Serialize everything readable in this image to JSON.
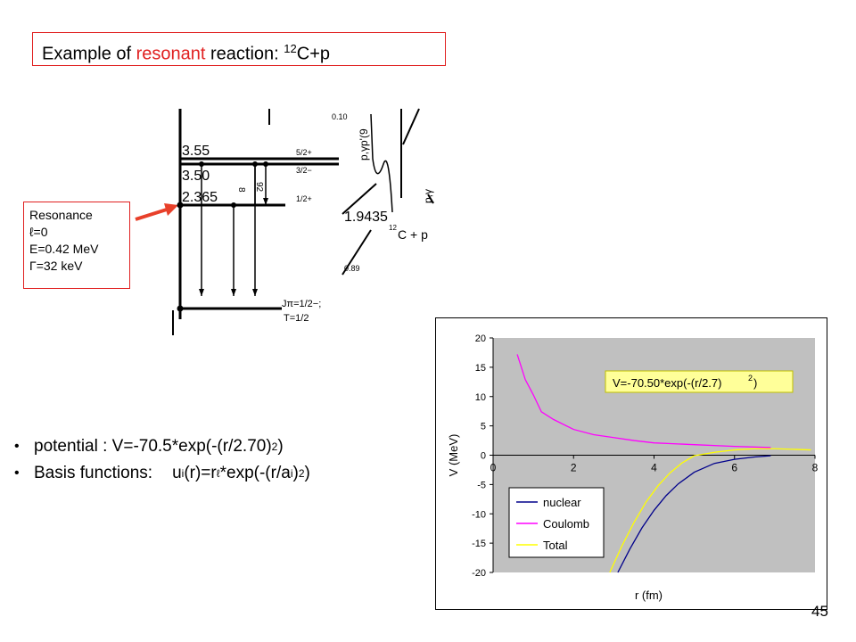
{
  "title": {
    "prefix": "Example of ",
    "highlight": "resonant",
    "suffix": " reaction: ",
    "mass": "12",
    "nucleus": "C+p"
  },
  "resonance": {
    "line1": "Resonance",
    "line2": "ℓ=0",
    "line3": "E=0.42 MeV",
    "line4": "Γ=32 keV"
  },
  "level_diagram": {
    "levels": [
      "3.55",
      "3.50",
      "2.365",
      "1.9435"
    ],
    "spins": [
      "5/2+",
      "3/2−",
      "1/2+"
    ],
    "gamma_labels": [
      "8",
      "92"
    ],
    "top_label": "0.10",
    "reaction": "12C + p",
    "reaction_mass": "12",
    "reaction_text": "C + p",
    "branch": "0.89",
    "jpi": "Jπ=1/2−;",
    "isospin": "T=1/2",
    "py_label": "p,γp'(9",
    "py2_label": "p,γ"
  },
  "bullets": {
    "b1_text": "potential : V=-70.5*exp(-(r/2.70)",
    "b1_sup": "2",
    "b1_end": ")",
    "b2_label": "Basis functions:",
    "b2_u": "u",
    "b2_sub_i": "i",
    "b2_mid": "(r)=r",
    "b2_sup_l": "ℓ",
    "b2_exp": "*exp(-(r/a",
    "b2_sub_i2": "i",
    "b2_close": ")",
    "b2_sup2": "2",
    "b2_end": ")"
  },
  "page_number": "45",
  "colors": {
    "accent": "#e02020",
    "plot_bg": "#c0c0c0",
    "nuclear": "#00008b",
    "coulomb": "#ff00ff",
    "total": "#ffff00"
  },
  "chart_data": {
    "type": "line",
    "xlabel": "r (fm)",
    "ylabel": "V (MeV)",
    "xlim": [
      0,
      8
    ],
    "ylim": [
      -20,
      20
    ],
    "xticks": [
      0,
      2,
      4,
      6,
      8
    ],
    "yticks": [
      20,
      15,
      10,
      5,
      0,
      -5,
      -10,
      -15,
      -20
    ],
    "grid": false,
    "legend_position": "bottom-left",
    "annotation": "V=-70.50*exp(-(r/2.7)",
    "annotation_sup": "2",
    "annotation_end": ")",
    "series": [
      {
        "name": "nuclear",
        "color": "#00008b",
        "x": [
          3.1,
          3.4,
          3.7,
          4.0,
          4.3,
          4.6,
          5.0,
          5.5,
          6.0,
          6.5,
          6.9
        ],
        "y": [
          -20,
          -16.0,
          -12.4,
          -9.4,
          -6.9,
          -4.9,
          -2.9,
          -1.4,
          -0.7,
          -0.3,
          -0.1
        ]
      },
      {
        "name": "Coulomb",
        "color": "#ff00ff",
        "x": [
          0.6,
          0.8,
          1.0,
          1.2,
          1.5,
          2.0,
          2.5,
          3.0,
          3.5,
          4.0,
          5.0,
          6.0,
          6.9
        ],
        "y": [
          17.2,
          12.9,
          10.3,
          7.4,
          6.1,
          4.4,
          3.5,
          3.0,
          2.5,
          2.1,
          1.8,
          1.5,
          1.3
        ]
      },
      {
        "name": "Total",
        "color": "#ffff00",
        "x": [
          2.9,
          3.2,
          3.5,
          3.8,
          4.1,
          4.4,
          4.7,
          5.0,
          5.5,
          6.0,
          6.5,
          7.0,
          7.5,
          7.9
        ],
        "y": [
          -20,
          -15.5,
          -11.5,
          -8.0,
          -5.2,
          -3.0,
          -1.3,
          -0.1,
          0.5,
          0.9,
          1.1,
          1.1,
          1.0,
          0.9
        ]
      }
    ]
  }
}
